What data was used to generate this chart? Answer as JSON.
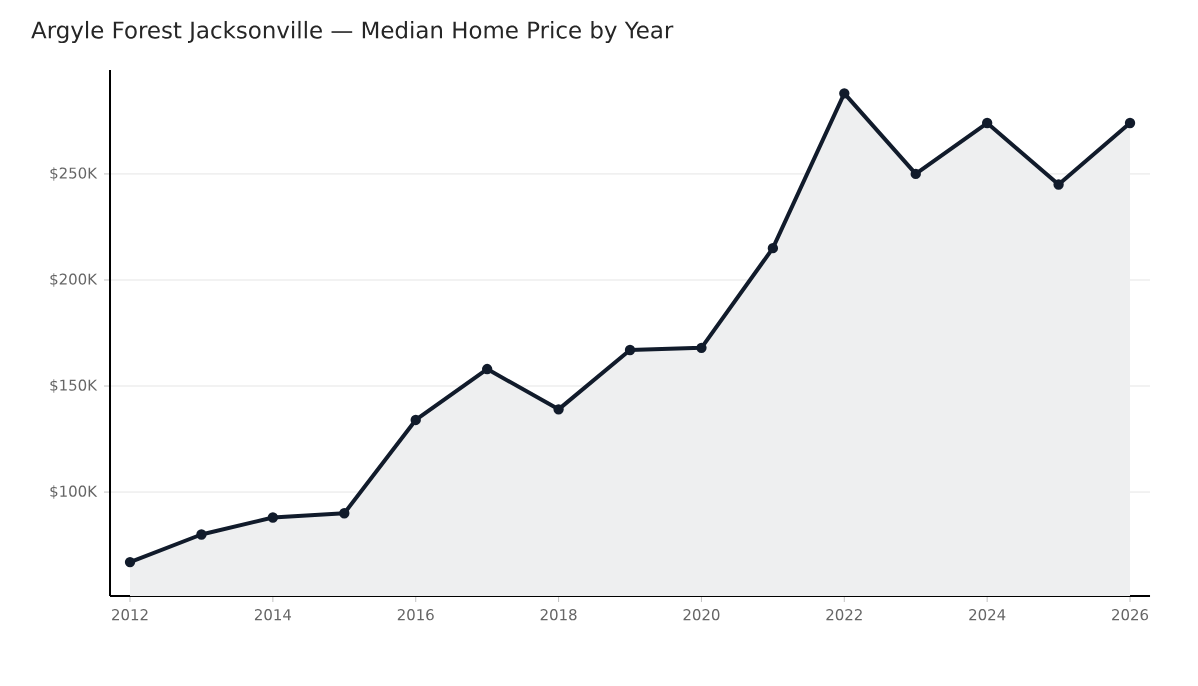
{
  "chart_data": {
    "type": "area",
    "title": "Argyle Forest Jacksonville — Median Home Price by Year",
    "x": [
      2012,
      2013,
      2014,
      2015,
      2016,
      2017,
      2018,
      2019,
      2020,
      2021,
      2022,
      2023,
      2024,
      2025,
      2026
    ],
    "series": [
      {
        "color": "#111b2b",
        "values": [
          67000,
          80000,
          88000,
          90000,
          134000,
          158000,
          139000,
          167000,
          168000,
          215000,
          288000,
          250000,
          274000,
          245000,
          274000
        ]
      }
    ],
    "xlim": [
      2011.72,
      2026.28
    ],
    "ylim": [
      51000,
      299000
    ],
    "xticks": [
      2012,
      2014,
      2016,
      2018,
      2020,
      2022,
      2024,
      2026
    ],
    "yticks": [
      {
        "value": 100000,
        "label": "$100K"
      },
      {
        "value": 150000,
        "label": "$150K"
      },
      {
        "value": 200000,
        "label": "$200K"
      },
      {
        "value": 250000,
        "label": "$250K"
      }
    ],
    "grid": "y",
    "marker": "circle"
  }
}
